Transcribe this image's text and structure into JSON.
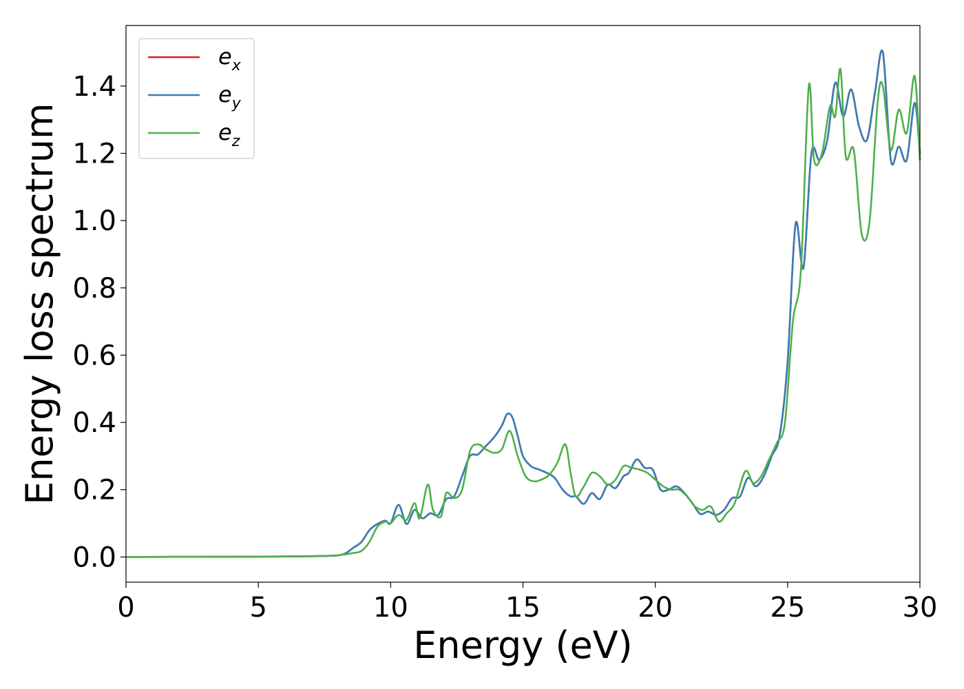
{
  "chart_data": {
    "type": "line",
    "title": "",
    "xlabel": "Energy (eV)",
    "ylabel": "Energy loss spectrum",
    "xlim": [
      0,
      30
    ],
    "ylim": [
      -0.075,
      1.58
    ],
    "xticks": [
      0,
      5,
      10,
      15,
      20,
      25,
      30
    ],
    "xtick_labels": [
      "0",
      "5",
      "10",
      "15",
      "20",
      "25",
      "30"
    ],
    "yticks": [
      0.0,
      0.2,
      0.4,
      0.6,
      0.8,
      1.0,
      1.2,
      1.4
    ],
    "ytick_labels": [
      "0.0",
      "0.2",
      "0.4",
      "0.6",
      "0.8",
      "1.0",
      "1.2",
      "1.4"
    ],
    "grid": false,
    "legend_position": "top-left",
    "series": [
      {
        "name_base": "e",
        "name_sub": "x",
        "color": "#e41a1c",
        "x": [
          0,
          5,
          7.5,
          8.2,
          8.6,
          8.9,
          9.2,
          9.5,
          9.8,
          10.0,
          10.3,
          10.6,
          10.9,
          11.2,
          11.5,
          11.8,
          12.1,
          12.4,
          12.7,
          13.0,
          13.3,
          13.6,
          13.9,
          14.2,
          14.4,
          14.6,
          14.8,
          15.0,
          15.3,
          15.6,
          15.9,
          16.2,
          16.5,
          16.8,
          17.0,
          17.3,
          17.6,
          17.9,
          18.2,
          18.5,
          18.8,
          19.0,
          19.3,
          19.6,
          19.9,
          20.2,
          20.5,
          20.8,
          21.1,
          21.4,
          21.7,
          22.0,
          22.3,
          22.6,
          22.9,
          23.2,
          23.5,
          23.8,
          24.1,
          24.4,
          24.7,
          25.0,
          25.3,
          25.6,
          25.9,
          26.2,
          26.5,
          26.8,
          27.1,
          27.4,
          27.7,
          28.0,
          28.3,
          28.6,
          28.9,
          29.2,
          29.5,
          29.8,
          30.0
        ],
        "y": [
          0.0,
          0.001,
          0.003,
          0.008,
          0.028,
          0.045,
          0.08,
          0.098,
          0.108,
          0.1,
          0.155,
          0.098,
          0.14,
          0.115,
          0.13,
          0.125,
          0.172,
          0.18,
          0.24,
          0.3,
          0.305,
          0.33,
          0.355,
          0.39,
          0.425,
          0.415,
          0.36,
          0.3,
          0.27,
          0.26,
          0.25,
          0.235,
          0.2,
          0.18,
          0.18,
          0.158,
          0.19,
          0.172,
          0.215,
          0.205,
          0.24,
          0.25,
          0.29,
          0.265,
          0.26,
          0.2,
          0.2,
          0.21,
          0.19,
          0.16,
          0.128,
          0.135,
          0.125,
          0.14,
          0.175,
          0.18,
          0.235,
          0.21,
          0.24,
          0.3,
          0.36,
          0.58,
          0.99,
          0.86,
          1.2,
          1.18,
          1.24,
          1.41,
          1.31,
          1.39,
          1.28,
          1.24,
          1.38,
          1.5,
          1.18,
          1.22,
          1.18,
          1.35,
          1.2
        ]
      },
      {
        "name_base": "e",
        "name_sub": "y",
        "color": "#377eb8",
        "x": [
          0,
          5,
          7.5,
          8.2,
          8.6,
          8.9,
          9.2,
          9.5,
          9.8,
          10.0,
          10.3,
          10.6,
          10.9,
          11.2,
          11.5,
          11.8,
          12.1,
          12.4,
          12.7,
          13.0,
          13.3,
          13.6,
          13.9,
          14.2,
          14.4,
          14.6,
          14.8,
          15.0,
          15.3,
          15.6,
          15.9,
          16.2,
          16.5,
          16.8,
          17.0,
          17.3,
          17.6,
          17.9,
          18.2,
          18.5,
          18.8,
          19.0,
          19.3,
          19.6,
          19.9,
          20.2,
          20.5,
          20.8,
          21.1,
          21.4,
          21.7,
          22.0,
          22.3,
          22.6,
          22.9,
          23.2,
          23.5,
          23.8,
          24.1,
          24.4,
          24.7,
          25.0,
          25.3,
          25.6,
          25.9,
          26.2,
          26.5,
          26.8,
          27.1,
          27.4,
          27.7,
          28.0,
          28.3,
          28.6,
          28.9,
          29.2,
          29.5,
          29.8,
          30.0
        ],
        "y": [
          0.0,
          0.001,
          0.003,
          0.008,
          0.028,
          0.045,
          0.08,
          0.098,
          0.108,
          0.1,
          0.155,
          0.098,
          0.14,
          0.115,
          0.13,
          0.125,
          0.172,
          0.18,
          0.24,
          0.3,
          0.305,
          0.33,
          0.355,
          0.39,
          0.425,
          0.415,
          0.36,
          0.3,
          0.27,
          0.26,
          0.25,
          0.235,
          0.2,
          0.18,
          0.18,
          0.158,
          0.19,
          0.172,
          0.215,
          0.205,
          0.24,
          0.25,
          0.29,
          0.265,
          0.26,
          0.2,
          0.2,
          0.21,
          0.19,
          0.16,
          0.128,
          0.135,
          0.125,
          0.14,
          0.175,
          0.18,
          0.235,
          0.21,
          0.24,
          0.3,
          0.36,
          0.58,
          0.99,
          0.86,
          1.2,
          1.18,
          1.24,
          1.41,
          1.31,
          1.39,
          1.28,
          1.24,
          1.38,
          1.5,
          1.18,
          1.22,
          1.18,
          1.35,
          1.2
        ]
      },
      {
        "name_base": "e",
        "name_sub": "z",
        "color": "#4daf4a",
        "x": [
          0,
          5,
          7.5,
          8.2,
          8.6,
          8.9,
          9.2,
          9.5,
          9.8,
          10.0,
          10.3,
          10.6,
          10.9,
          11.1,
          11.4,
          11.6,
          11.9,
          12.1,
          12.4,
          12.7,
          13.0,
          13.3,
          13.6,
          13.9,
          14.2,
          14.5,
          14.8,
          15.1,
          15.4,
          15.7,
          16.0,
          16.3,
          16.6,
          16.8,
          17.0,
          17.3,
          17.6,
          17.9,
          18.2,
          18.5,
          18.8,
          19.1,
          19.4,
          19.7,
          20.0,
          20.3,
          20.6,
          20.9,
          21.2,
          21.5,
          21.8,
          22.1,
          22.4,
          22.7,
          23.0,
          23.4,
          23.7,
          24.0,
          24.3,
          24.6,
          24.9,
          25.2,
          25.5,
          25.8,
          26.0,
          26.3,
          26.6,
          26.8,
          27.0,
          27.2,
          27.5,
          27.8,
          28.1,
          28.4,
          28.6,
          28.9,
          29.2,
          29.5,
          29.8,
          30.0
        ],
        "y": [
          0.0,
          0.001,
          0.003,
          0.007,
          0.012,
          0.018,
          0.045,
          0.09,
          0.105,
          0.1,
          0.125,
          0.11,
          0.16,
          0.115,
          0.215,
          0.14,
          0.12,
          0.19,
          0.175,
          0.2,
          0.315,
          0.335,
          0.32,
          0.31,
          0.32,
          0.375,
          0.3,
          0.24,
          0.225,
          0.23,
          0.245,
          0.28,
          0.335,
          0.25,
          0.18,
          0.21,
          0.25,
          0.24,
          0.215,
          0.23,
          0.27,
          0.265,
          0.26,
          0.25,
          0.23,
          0.21,
          0.2,
          0.2,
          0.18,
          0.15,
          0.14,
          0.15,
          0.105,
          0.13,
          0.16,
          0.255,
          0.22,
          0.24,
          0.29,
          0.34,
          0.4,
          0.7,
          0.85,
          1.4,
          1.18,
          1.2,
          1.34,
          1.31,
          1.45,
          1.19,
          1.21,
          0.96,
          1.0,
          1.35,
          1.4,
          1.21,
          1.33,
          1.26,
          1.43,
          1.18
        ]
      }
    ]
  }
}
